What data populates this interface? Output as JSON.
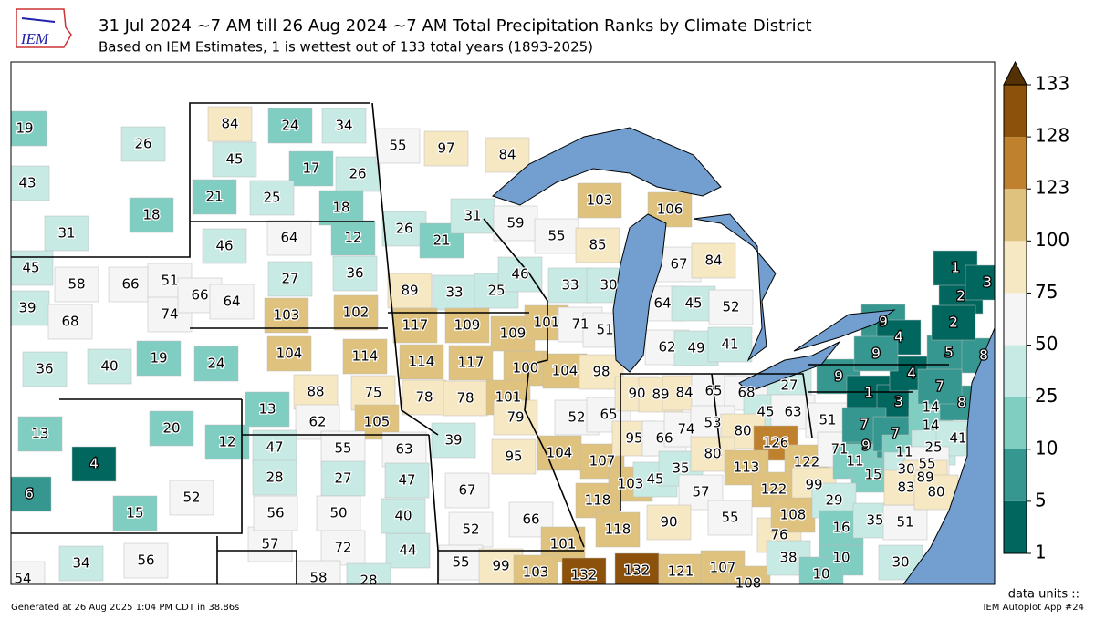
{
  "header": {
    "title": "31 Jul 2024 ~7 AM till 26 Aug 2024 ~7 AM Total Precipitation Ranks by Climate District",
    "subtitle": "Based on IEM Estimates, 1 is wettest out of 133 total years (1893-2025)"
  },
  "logo": "IEM",
  "districts": [
    19,
    26,
    43,
    18,
    31,
    45,
    58,
    66,
    51,
    39,
    68,
    74,
    36,
    40,
    19,
    13,
    20,
    12,
    4,
    6,
    52,
    15,
    54,
    34,
    56,
    57,
    72,
    44,
    58,
    28,
    84,
    24,
    34,
    45,
    17,
    26,
    21,
    25,
    18,
    46,
    64,
    12,
    27,
    36,
    66,
    64,
    103,
    102,
    24,
    104,
    114,
    88,
    75,
    13,
    62,
    105,
    47,
    55,
    63,
    28,
    27,
    47,
    56,
    50,
    40,
    55,
    97,
    84,
    26,
    21,
    31,
    89,
    33,
    25,
    117,
    109,
    109,
    114,
    117,
    100,
    78,
    78,
    101,
    59,
    55,
    85,
    46,
    33,
    30,
    101,
    71,
    51,
    104,
    98,
    39,
    67,
    52,
    66,
    95,
    79,
    52,
    65,
    104,
    107,
    118,
    90,
    89,
    84,
    95,
    66,
    74,
    103,
    45,
    35,
    103,
    106,
    67,
    84,
    64,
    45,
    52,
    62,
    49,
    41,
    65,
    68,
    27,
    45,
    63,
    53,
    80,
    80,
    126,
    113,
    122,
    122,
    99,
    57,
    55,
    90,
    118,
    101,
    76,
    108,
    55,
    99,
    103,
    132,
    132,
    121,
    107,
    108,
    38,
    10,
    10,
    30,
    51,
    71,
    9,
    11,
    15,
    29,
    16,
    35,
    51,
    9,
    1,
    3,
    7,
    7,
    4,
    14,
    14,
    8,
    9,
    4,
    9,
    2,
    5,
    8,
    1,
    2,
    3,
    7,
    11,
    25,
    41,
    30,
    55,
    89,
    83,
    80
  ],
  "colorbar": {
    "ticks": [
      1,
      5,
      10,
      25,
      50,
      75,
      100,
      123,
      128,
      133
    ],
    "colors": [
      "#01665e",
      "#35978f",
      "#80cdc1",
      "#c7eae5",
      "#f5f5f5",
      "#f6e8c3",
      "#dfc27d",
      "#bf812d",
      "#8c510a"
    ],
    "extend_color": "#543005",
    "units": "data units ::"
  },
  "footer": {
    "generated": "Generated at 26 Aug 2025 1:04 PM CDT in 38.86s",
    "app": "IEM Autoplot App #24"
  }
}
